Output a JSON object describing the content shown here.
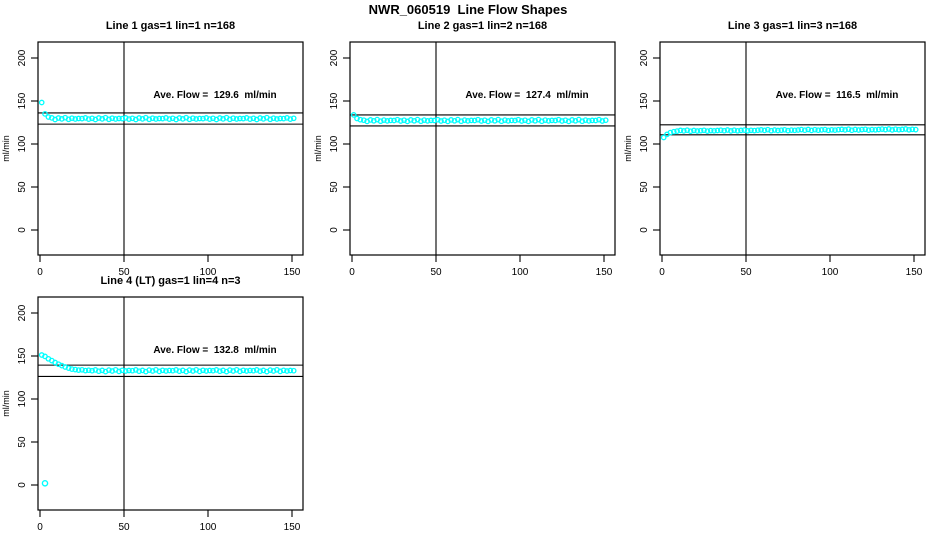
{
  "main_title": "NWR_060519  Line Flow Shapes",
  "marker_color": "#00FFFF",
  "axis_color": "#000000",
  "chart_data": [
    {
      "type": "scatter",
      "title": "Line 1 gas=1 lin=1 n=168",
      "annotation": "Ave. Flow =  129.6  ml/min",
      "xlabel": "",
      "ylabel": "ml/min",
      "xticks": [
        0,
        50,
        100,
        150
      ],
      "yticks": [
        0,
        50,
        100,
        150,
        200
      ],
      "xlim": [
        0,
        156
      ],
      "ylim": [
        -29,
        219
      ],
      "vline_x": 50,
      "hlines": [
        136.1,
        123.1
      ],
      "legend": null,
      "grid": false,
      "x_start": 1,
      "x_step": 2,
      "y": [
        148.2,
        135.0,
        131.4,
        130.4,
        128.5,
        130.2,
        129.2,
        130.6,
        128.7,
        130.0,
        129.1,
        129.7,
        129.5,
        130.4,
        128.9,
        129.9,
        128.5,
        130.2,
        129.2,
        130.6,
        128.7,
        130.0,
        129.1,
        129.7,
        129.5,
        130.4,
        128.9,
        129.9,
        128.5,
        130.2,
        129.2,
        130.6,
        128.7,
        130.0,
        129.1,
        129.7,
        129.5,
        130.4,
        128.9,
        129.9,
        128.5,
        130.2,
        129.2,
        130.6,
        128.7,
        130.0,
        129.1,
        129.7,
        129.5,
        130.4,
        128.9,
        129.9,
        128.5,
        130.2,
        129.2,
        130.6,
        128.7,
        130.0,
        129.1,
        129.7,
        129.5,
        130.4,
        128.9,
        129.9,
        128.5,
        130.2,
        129.2,
        130.6,
        128.7,
        130.0,
        129.1,
        129.7,
        129.5,
        130.4,
        128.9,
        129.9
      ],
      "extra_points": []
    },
    {
      "type": "scatter",
      "title": "Line 2 gas=1 lin=2 n=168",
      "annotation": "Ave. Flow =  127.4  ml/min",
      "xlabel": "",
      "ylabel": "ml/min",
      "xticks": [
        0,
        50,
        100,
        150
      ],
      "yticks": [
        0,
        50,
        100,
        150,
        200
      ],
      "xlim": [
        0,
        156
      ],
      "ylim": [
        -29,
        219
      ],
      "vline_x": 50,
      "hlines": [
        133.8,
        121.0
      ],
      "legend": null,
      "grid": false,
      "x_start": 1,
      "x_step": 2,
      "y": [
        133.8,
        129.6,
        128.2,
        127.7,
        126.3,
        128.0,
        127.0,
        128.4,
        126.5,
        127.8,
        126.9,
        127.5,
        127.3,
        128.2,
        126.7,
        127.7,
        126.3,
        128.0,
        127.0,
        128.4,
        126.5,
        127.8,
        126.9,
        127.5,
        127.3,
        128.2,
        126.7,
        127.7,
        126.3,
        128.0,
        127.0,
        128.4,
        126.5,
        127.8,
        126.9,
        127.5,
        127.3,
        128.2,
        126.7,
        127.7,
        126.3,
        128.0,
        127.0,
        128.4,
        126.5,
        127.8,
        126.9,
        127.5,
        127.3,
        128.2,
        126.7,
        127.7,
        126.3,
        128.0,
        127.0,
        128.4,
        126.5,
        127.8,
        126.9,
        127.5,
        127.3,
        128.2,
        126.7,
        127.7,
        126.3,
        128.0,
        127.0,
        128.4,
        126.5,
        127.8,
        126.9,
        127.5,
        127.3,
        128.2,
        126.7,
        127.7
      ],
      "extra_points": []
    },
    {
      "type": "scatter",
      "title": "Line 3 gas=1 lin=3 n=168",
      "annotation": "Ave. Flow =  116.5  ml/min",
      "xlabel": "",
      "ylabel": "ml/min",
      "xticks": [
        0,
        50,
        100,
        150
      ],
      "yticks": [
        0,
        50,
        100,
        150,
        200
      ],
      "xlim": [
        0,
        156
      ],
      "ylim": [
        -29,
        219
      ],
      "vline_x": 50,
      "hlines": [
        122.3,
        110.7
      ],
      "legend": null,
      "grid": false,
      "x_start": 1,
      "x_step": 2,
      "y": [
        107.5,
        111.2,
        113.2,
        114.3,
        115.0,
        115.8,
        115.2,
        116.0,
        114.9,
        115.7,
        115.1,
        115.5,
        115.9,
        115.0,
        115.6,
        115.3,
        115.7,
        116.1,
        115.5,
        116.3,
        115.2,
        116.0,
        115.4,
        115.8,
        116.2,
        115.3,
        115.9,
        115.6,
        116.0,
        116.4,
        115.8,
        116.6,
        115.5,
        116.3,
        115.7,
        116.1,
        116.5,
        115.6,
        116.2,
        115.9,
        116.3,
        116.7,
        116.1,
        116.9,
        115.8,
        116.6,
        116.0,
        116.4,
        116.8,
        115.9,
        116.5,
        116.2,
        116.6,
        117.0,
        116.4,
        117.2,
        116.1,
        116.9,
        116.3,
        116.7,
        117.1,
        116.2,
        116.8,
        116.5,
        116.9,
        117.3,
        116.7,
        117.5,
        116.4,
        117.2,
        116.6,
        117.0,
        117.4,
        116.5,
        117.1,
        116.8
      ],
      "extra_points": []
    },
    {
      "type": "scatter",
      "title": "Line 4 (LT) gas=1 lin=4 n=3",
      "annotation": "Ave. Flow =  132.8  ml/min",
      "xlabel": "",
      "ylabel": "ml/min",
      "xticks": [
        0,
        50,
        100,
        150
      ],
      "yticks": [
        0,
        50,
        100,
        150,
        200
      ],
      "xlim": [
        0,
        156
      ],
      "ylim": [
        -29,
        219
      ],
      "vline_x": 50,
      "hlines": [
        139.4,
        126.2
      ],
      "legend": null,
      "grid": false,
      "x_start": 1,
      "x_step": 2,
      "y": [
        151.2,
        149.5,
        146.8,
        144.6,
        142.4,
        140.5,
        138.8,
        137.2,
        135.9,
        134.8,
        134.2,
        133.6,
        133.9,
        133.0,
        133.5,
        132.9,
        133.8,
        132.3,
        133.3,
        131.9,
        133.6,
        132.6,
        134.0,
        132.1,
        133.4,
        132.5,
        133.1,
        132.9,
        133.8,
        132.3,
        133.3,
        131.9,
        133.6,
        132.6,
        134.0,
        132.1,
        133.4,
        132.5,
        133.1,
        132.9,
        133.8,
        132.3,
        133.3,
        131.9,
        133.6,
        132.6,
        134.0,
        132.1,
        133.4,
        132.5,
        133.1,
        132.9,
        133.8,
        132.3,
        133.3,
        131.9,
        133.6,
        132.6,
        134.0,
        132.1,
        133.4,
        132.5,
        133.1,
        132.9,
        133.8,
        132.3,
        133.3,
        131.9,
        133.6,
        132.6,
        134.0,
        132.1,
        133.4,
        132.5,
        133.1,
        132.9
      ],
      "extra_points": [
        [
          3,
          2.0
        ]
      ]
    }
  ]
}
